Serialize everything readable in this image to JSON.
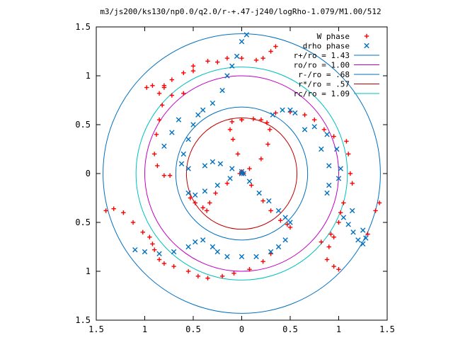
{
  "chart_data": {
    "type": "scatter",
    "title": "m3/js200/ks130/np0.0/q2.0/r-+.47-j240/logRho-1.079/M1.00/512",
    "xlabel": "",
    "ylabel": "",
    "xlim": [
      -1.5,
      1.5
    ],
    "ylim": [
      -1.5,
      1.5
    ],
    "x_tick_labels": [
      "1.5",
      "1",
      "0.5",
      "0",
      "0.5",
      "1",
      "1.5"
    ],
    "x_ticks": [
      -1.5,
      -1,
      -0.5,
      0,
      0.5,
      1,
      1.5
    ],
    "y_tick_labels": [
      "1.5",
      "1",
      "0.5",
      "0",
      "0.5",
      "1",
      "1.5"
    ],
    "y_ticks": [
      1.5,
      1,
      0.5,
      0,
      -0.5,
      -1,
      -1.5
    ],
    "grid": false,
    "legend_position": "top-right",
    "series": [
      {
        "name": "W phase",
        "marker": "plus",
        "color": "#ff0000",
        "points": [
          [
            0.0,
            0.55
          ],
          [
            -0.1,
            0.53
          ],
          [
            -0.12,
            0.45
          ],
          [
            -0.09,
            0.35
          ],
          [
            -0.04,
            0.2
          ],
          [
            0.0,
            0.02
          ],
          [
            0.0,
            0.55
          ],
          [
            0.12,
            0.56
          ],
          [
            0.2,
            0.55
          ],
          [
            0.26,
            0.52
          ],
          [
            0.29,
            0.45
          ],
          [
            0.27,
            0.3
          ],
          [
            0.2,
            0.15
          ],
          [
            0.08,
            0.05
          ],
          [
            0.02,
            0.0
          ],
          [
            0.1,
            -0.12
          ],
          [
            0.22,
            -0.28
          ],
          [
            0.3,
            -0.38
          ],
          [
            0.4,
            -0.48
          ],
          [
            0.47,
            -0.52
          ],
          [
            0.5,
            -0.55
          ],
          [
            -0.02,
            0.0
          ],
          [
            -0.15,
            -0.1
          ],
          [
            -0.27,
            -0.2
          ],
          [
            -0.33,
            -0.3
          ],
          [
            -0.36,
            -0.38
          ],
          [
            -0.4,
            -0.35
          ],
          [
            -0.48,
            -0.3
          ],
          [
            -0.53,
            -0.25
          ],
          [
            -0.98,
            0.88
          ],
          [
            -0.92,
            0.9
          ],
          [
            -0.85,
            0.82
          ],
          [
            -0.82,
            0.7
          ],
          [
            -0.85,
            0.55
          ],
          [
            -0.88,
            0.4
          ],
          [
            -0.9,
            0.2
          ],
          [
            -0.87,
            0.08
          ],
          [
            -0.8,
            -0.02
          ],
          [
            -0.74,
            -0.02
          ],
          [
            -0.8,
            0.9
          ],
          [
            -0.72,
            0.96
          ],
          [
            -0.6,
            1.03
          ],
          [
            -0.5,
            1.1
          ],
          [
            -0.35,
            1.15
          ],
          [
            -0.15,
            1.18
          ],
          [
            0.0,
            1.18
          ],
          [
            0.15,
            1.16
          ],
          [
            0.22,
            1.18
          ],
          [
            0.3,
            1.25
          ],
          [
            0.35,
            1.3
          ],
          [
            -0.72,
            0.8
          ],
          [
            -0.5,
            1.05
          ],
          [
            -0.25,
            1.14
          ],
          [
            -0.6,
            0.82
          ],
          [
            -0.8,
            0.88
          ],
          [
            0.35,
            0.62
          ],
          [
            0.5,
            0.63
          ],
          [
            0.65,
            0.6
          ],
          [
            0.75,
            0.55
          ],
          [
            0.85,
            0.45
          ],
          [
            0.95,
            0.38
          ],
          [
            1.08,
            0.33
          ],
          [
            1.1,
            0.2
          ],
          [
            1.12,
            0.0
          ],
          [
            1.14,
            -0.1
          ],
          [
            1.05,
            -0.3
          ],
          [
            1.02,
            -0.4
          ],
          [
            1.0,
            -0.5
          ],
          [
            0.95,
            -0.65
          ],
          [
            0.9,
            -0.75
          ],
          [
            0.88,
            -0.88
          ],
          [
            0.95,
            -0.95
          ],
          [
            1.0,
            -0.98
          ],
          [
            0.92,
            -0.62
          ],
          [
            0.82,
            -0.7
          ],
          [
            1.3,
            -0.62
          ],
          [
            1.38,
            -0.38
          ],
          [
            1.42,
            -0.3
          ],
          [
            0.3,
            -0.82
          ],
          [
            0.22,
            -0.9
          ],
          [
            0.08,
            -0.98
          ],
          [
            -0.08,
            -1.02
          ],
          [
            -0.2,
            -1.05
          ],
          [
            -0.35,
            -1.07
          ],
          [
            -0.45,
            -1.05
          ],
          [
            -0.55,
            -1.0
          ],
          [
            -0.7,
            -0.95
          ],
          [
            -0.8,
            -0.92
          ],
          [
            -1.4,
            -0.38
          ],
          [
            -1.32,
            -0.36
          ],
          [
            -1.22,
            -0.4
          ],
          [
            -1.12,
            -0.5
          ],
          [
            -1.02,
            -0.6
          ],
          [
            -0.95,
            -0.65
          ],
          [
            -0.92,
            -0.72
          ],
          [
            -0.9,
            -0.78
          ],
          [
            -0.85,
            -0.88
          ]
        ]
      },
      {
        "name": "drho phase",
        "marker": "x",
        "color": "#0070c0",
        "points": [
          [
            0.0,
            0.02
          ],
          [
            -0.12,
            -0.05
          ],
          [
            -0.25,
            -0.12
          ],
          [
            -0.38,
            -0.18
          ],
          [
            -0.48,
            -0.22
          ],
          [
            -0.55,
            -0.2
          ],
          [
            0.0,
            0.0
          ],
          [
            -0.1,
            0.05
          ],
          [
            -0.22,
            0.1
          ],
          [
            -0.3,
            0.12
          ],
          [
            -0.38,
            0.08
          ],
          [
            0.02,
            0.0
          ],
          [
            0.08,
            -0.08
          ],
          [
            0.18,
            -0.2
          ],
          [
            0.28,
            -0.28
          ],
          [
            0.38,
            -0.38
          ],
          [
            0.45,
            -0.45
          ],
          [
            0.5,
            -0.5
          ],
          [
            0.32,
            0.6
          ],
          [
            0.42,
            0.65
          ],
          [
            0.5,
            0.65
          ],
          [
            0.55,
            0.62
          ],
          [
            0.75,
            0.48
          ],
          [
            0.88,
            0.4
          ],
          [
            0.98,
            0.25
          ],
          [
            1.02,
            0.05
          ],
          [
            1.0,
            -0.05
          ],
          [
            0.9,
            -0.12
          ],
          [
            0.88,
            -0.2
          ],
          [
            1.05,
            -0.45
          ],
          [
            1.1,
            -0.52
          ],
          [
            1.15,
            -0.6
          ],
          [
            1.2,
            -0.68
          ],
          [
            1.25,
            -0.72
          ],
          [
            1.14,
            -0.38
          ],
          [
            1.25,
            -0.58
          ],
          [
            1.28,
            -0.66
          ],
          [
            -1.1,
            -0.78
          ],
          [
            -1.0,
            -0.8
          ],
          [
            -0.85,
            -0.82
          ],
          [
            -0.7,
            -0.8
          ],
          [
            -0.55,
            -0.75
          ],
          [
            -0.48,
            -0.7
          ],
          [
            -0.4,
            -0.68
          ],
          [
            -0.3,
            -0.75
          ],
          [
            -0.25,
            -0.8
          ],
          [
            -0.15,
            -0.85
          ],
          [
            0.0,
            -0.85
          ],
          [
            0.15,
            -0.85
          ],
          [
            0.3,
            -0.8
          ],
          [
            0.38,
            -0.75
          ],
          [
            0.45,
            -0.68
          ],
          [
            -0.55,
            0.05
          ],
          [
            -0.62,
            0.1
          ],
          [
            -0.6,
            0.2
          ],
          [
            -0.55,
            0.35
          ],
          [
            -0.5,
            0.5
          ],
          [
            -0.45,
            0.6
          ],
          [
            -0.4,
            0.65
          ],
          [
            -0.3,
            0.72
          ],
          [
            -0.2,
            0.85
          ],
          [
            -0.15,
            1.0
          ],
          [
            -0.1,
            1.1
          ],
          [
            -0.05,
            1.2
          ],
          [
            0.0,
            1.35
          ],
          [
            0.05,
            1.42
          ],
          [
            -0.65,
            0.55
          ],
          [
            -0.72,
            0.42
          ],
          [
            -0.8,
            0.28
          ],
          [
            0.65,
            0.45
          ],
          [
            0.82,
            0.25
          ],
          [
            0.9,
            0.08
          ]
        ]
      }
    ],
    "circles": [
      {
        "name": "r+/ro = 1.43",
        "radius": 1.43,
        "color": "#0070c0"
      },
      {
        "name": "ro/ro = 1.00",
        "radius": 1.0,
        "color": "#c000c0"
      },
      {
        "name": "r-/ro = .68",
        "radius": 0.68,
        "color": "#0070c0"
      },
      {
        "name": "r*/ro = .57",
        "radius": 0.57,
        "color": "#c00000"
      },
      {
        "name": "rc/ro = 1.09",
        "radius": 1.09,
        "color": "#00c0c0"
      }
    ]
  }
}
